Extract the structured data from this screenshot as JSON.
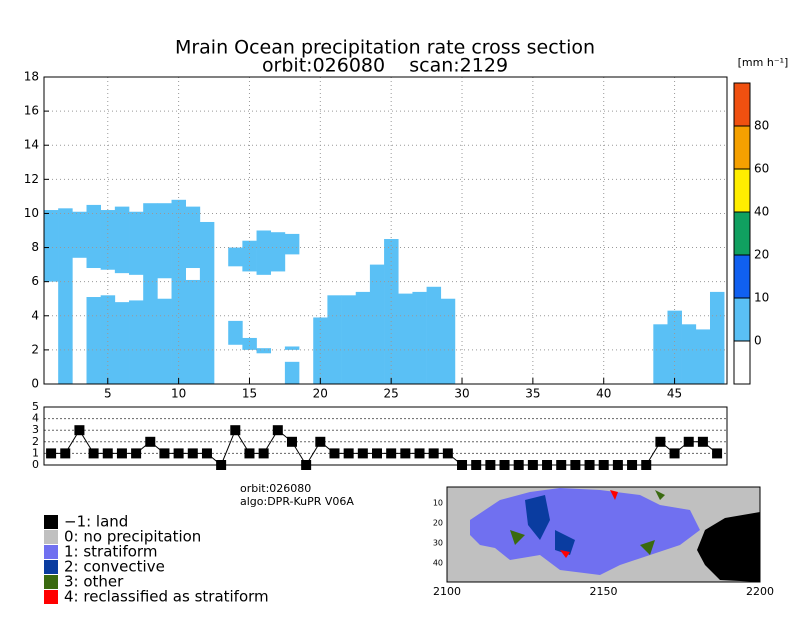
{
  "chart_data": {
    "type": "cross_section",
    "title": "Mrain Ocean precipitation rate cross section",
    "subtitle": "orbit:026080    scan:2129",
    "unit_label": "[mm h⁻¹]",
    "color": "#5ac0f5",
    "xlim": [
      0.5,
      48.7
    ],
    "xticks": [
      5,
      10,
      15,
      20,
      25,
      30,
      35,
      40,
      45
    ],
    "ylim": [
      0,
      18
    ],
    "yticks": [
      0,
      2,
      4,
      6,
      8,
      10,
      12,
      14,
      16,
      18
    ],
    "grid": true,
    "segments": [
      [
        1,
        6,
        10.2
      ],
      [
        2,
        0,
        10.3
      ],
      [
        3,
        7.4,
        10.1
      ],
      [
        4,
        0,
        5.1
      ],
      [
        4,
        6.8,
        10.5
      ],
      [
        5,
        0,
        5.2
      ],
      [
        5,
        6.7,
        10.2
      ],
      [
        6,
        0,
        4.8
      ],
      [
        6,
        6.5,
        10.4
      ],
      [
        7,
        0,
        4.9
      ],
      [
        7,
        6.4,
        10.1
      ],
      [
        8,
        0,
        10.6
      ],
      [
        9,
        0,
        5.0
      ],
      [
        9,
        6.2,
        10.6
      ],
      [
        10,
        0,
        10.8
      ],
      [
        11,
        0,
        6.1
      ],
      [
        11,
        6.8,
        10.4
      ],
      [
        12,
        0,
        9.5
      ],
      [
        14,
        2.3,
        3.7
      ],
      [
        14,
        6.9,
        8.0
      ],
      [
        15,
        2.0,
        2.7
      ],
      [
        15,
        6.6,
        8.4
      ],
      [
        16,
        1.8,
        2.1
      ],
      [
        16,
        6.4,
        9.0
      ],
      [
        17,
        6.6,
        8.9
      ],
      [
        18,
        0,
        1.3
      ],
      [
        18,
        2.0,
        2.2
      ],
      [
        18,
        7.6,
        8.8
      ],
      [
        20,
        0,
        3.9
      ],
      [
        21,
        0,
        5.2
      ],
      [
        22,
        0,
        5.2
      ],
      [
        23,
        0,
        5.4
      ],
      [
        24,
        0,
        7.0
      ],
      [
        25,
        0,
        8.5
      ],
      [
        26,
        0,
        5.3
      ],
      [
        27,
        0,
        5.4
      ],
      [
        28,
        0,
        5.7
      ],
      [
        29,
        0,
        5.0
      ],
      [
        44,
        0,
        3.5
      ],
      [
        45,
        0,
        4.3
      ],
      [
        46,
        0,
        3.5
      ],
      [
        47,
        0,
        3.2
      ],
      [
        48,
        0,
        5.4
      ]
    ],
    "colorbar": {
      "levels": [
        0,
        10,
        20,
        40,
        60,
        80
      ],
      "colors": [
        "#ffffff",
        "#5ac0f5",
        "#1060f0",
        "#10a060",
        "#ffee00",
        "#f5a000",
        "#f05010"
      ]
    },
    "type_panel": {
      "ylim": [
        0,
        5
      ],
      "yticks": [
        0,
        1,
        2,
        3,
        4,
        5
      ],
      "values": [
        1,
        1,
        3,
        1,
        1,
        1,
        1,
        2,
        1,
        1,
        1,
        1,
        0,
        3,
        1,
        1,
        3,
        2,
        0,
        2,
        1,
        1,
        1,
        1,
        1,
        1,
        1,
        1,
        1,
        0,
        0,
        0,
        0,
        0,
        0,
        0,
        0,
        0,
        0,
        0,
        0,
        0,
        0,
        2,
        1,
        2,
        2,
        1
      ]
    },
    "info": [
      "orbit:026080",
      "algo:DPR-KuPR V06A"
    ],
    "legend": [
      {
        "name": "−1: land",
        "color": "#000000"
      },
      {
        "name": "0: no precipitation",
        "color": "#c0c0c0"
      },
      {
        "name": "1: stratiform",
        "color": "#7070f0"
      },
      {
        "name": "2: convective",
        "color": "#0a3ca0"
      },
      {
        "name": "3: other",
        "color": "#3a6a10"
      },
      {
        "name": "4: reclassified as stratiform",
        "color": "#ff0000"
      }
    ],
    "map": {
      "xticks": [
        2100,
        2150,
        2200
      ],
      "yticks": [
        10,
        20,
        30,
        40
      ]
    }
  }
}
